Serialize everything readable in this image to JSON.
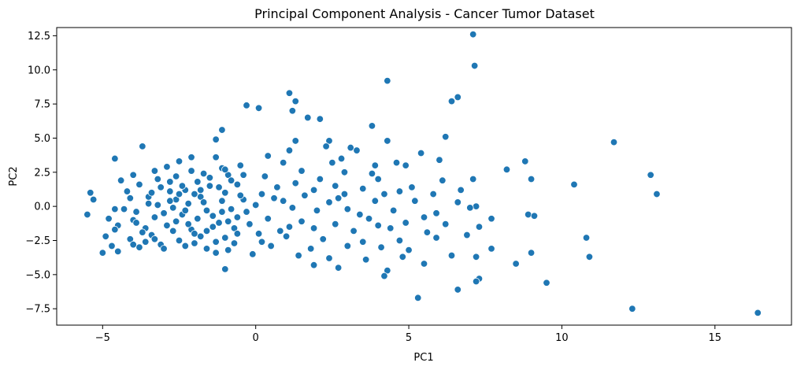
{
  "chart_data": {
    "type": "scatter",
    "title": "Principal Component Analysis - Cancer Tumor Dataset",
    "xlabel": "PC1",
    "ylabel": "PC2",
    "xlim": [
      -6.5,
      17.5
    ],
    "ylim": [
      -8.7,
      13.1
    ],
    "xticks": [
      -5,
      0,
      5,
      10,
      15
    ],
    "xtick_labels": [
      "−5",
      "0",
      "5",
      "10",
      "15"
    ],
    "yticks": [
      -7.5,
      -5.0,
      -2.5,
      0.0,
      2.5,
      5.0,
      7.5,
      10.0,
      12.5
    ],
    "ytick_labels": [
      "−7.5",
      "−5.0",
      "−2.5",
      "0.0",
      "2.5",
      "5.0",
      "7.5",
      "10.0",
      "12.5"
    ],
    "grid": false,
    "marker_color": "#1f77b4",
    "marker_edge": "#ffffff",
    "points": [
      [
        7.1,
        12.6
      ],
      [
        7.15,
        10.3
      ],
      [
        4.3,
        9.2
      ],
      [
        1.1,
        8.3
      ],
      [
        1.3,
        7.7
      ],
      [
        6.6,
        8.0
      ],
      [
        6.4,
        7.7
      ],
      [
        -0.3,
        7.4
      ],
      [
        0.1,
        7.2
      ],
      [
        1.2,
        7.0
      ],
      [
        1.7,
        6.5
      ],
      [
        2.1,
        6.4
      ],
      [
        3.8,
        5.9
      ],
      [
        -1.1,
        5.6
      ],
      [
        6.2,
        5.1
      ],
      [
        11.7,
        4.7
      ],
      [
        -1.3,
        4.9
      ],
      [
        1.3,
        4.8
      ],
      [
        2.4,
        4.8
      ],
      [
        4.3,
        4.8
      ],
      [
        -3.7,
        4.4
      ],
      [
        2.3,
        4.4
      ],
      [
        3.1,
        4.3
      ],
      [
        3.3,
        4.1
      ],
      [
        1.1,
        4.1
      ],
      [
        0.4,
        3.7
      ],
      [
        -1.3,
        3.6
      ],
      [
        -2.1,
        3.6
      ],
      [
        -4.6,
        3.5
      ],
      [
        2.8,
        3.5
      ],
      [
        5.4,
        3.9
      ],
      [
        8.8,
        3.3
      ],
      [
        6.0,
        3.4
      ],
      [
        -2.5,
        3.3
      ],
      [
        4.6,
        3.2
      ],
      [
        4.9,
        3.0
      ],
      [
        2.5,
        3.2
      ],
      [
        -1.1,
        2.8
      ],
      [
        3.9,
        3.0
      ],
      [
        0.9,
        3.2
      ],
      [
        -0.5,
        3.0
      ],
      [
        8.2,
        2.7
      ],
      [
        1.5,
        2.6
      ],
      [
        2.9,
        2.5
      ],
      [
        12.9,
        2.3
      ],
      [
        9.0,
        2.0
      ],
      [
        7.1,
        2.0
      ],
      [
        -4.0,
        2.3
      ],
      [
        -3.3,
        2.6
      ],
      [
        -1.7,
        2.4
      ],
      [
        -0.9,
        2.3
      ],
      [
        0.3,
        2.2
      ],
      [
        2.1,
        2.0
      ],
      [
        4.0,
        2.0
      ],
      [
        6.1,
        1.9
      ],
      [
        10.4,
        1.6
      ],
      [
        -3.8,
        1.6
      ],
      [
        -2.8,
        1.8
      ],
      [
        -1.5,
        1.5
      ],
      [
        -0.6,
        1.6
      ],
      [
        0.7,
        1.4
      ],
      [
        1.9,
        1.2
      ],
      [
        3.5,
        1.3
      ],
      [
        5.1,
        1.4
      ],
      [
        6.7,
        1.2
      ],
      [
        13.1,
        0.9
      ],
      [
        -5.4,
        1.0
      ],
      [
        -4.2,
        1.1
      ],
      [
        -2.3,
        1.2
      ],
      [
        -1.0,
        1.0
      ],
      [
        0.2,
        0.9
      ],
      [
        1.6,
        0.8
      ],
      [
        2.7,
        0.6
      ],
      [
        4.2,
        0.9
      ],
      [
        5.8,
        0.9
      ],
      [
        7.2,
        0.0
      ],
      [
        -5.3,
        0.5
      ],
      [
        -3.5,
        0.7
      ],
      [
        -2.6,
        0.5
      ],
      [
        -1.8,
        0.7
      ],
      [
        -0.4,
        0.5
      ],
      [
        0.9,
        0.4
      ],
      [
        2.4,
        0.3
      ],
      [
        3.9,
        0.4
      ],
      [
        5.2,
        0.4
      ],
      [
        7.0,
        -0.1
      ],
      [
        -5.5,
        -0.6
      ],
      [
        -4.6,
        -0.2
      ],
      [
        -3.9,
        -0.4
      ],
      [
        -3.2,
        0.1
      ],
      [
        -2.7,
        -0.1
      ],
      [
        -2.2,
        0.2
      ],
      [
        -1.6,
        -0.3
      ],
      [
        -0.8,
        -0.2
      ],
      [
        0.0,
        0.1
      ],
      [
        1.2,
        -0.1
      ],
      [
        2.0,
        -0.3
      ],
      [
        3.0,
        -0.2
      ],
      [
        4.5,
        -0.3
      ],
      [
        5.9,
        -0.5
      ],
      [
        7.7,
        -0.9
      ],
      [
        8.9,
        -0.6
      ],
      [
        9.1,
        -0.7
      ],
      [
        -4.8,
        -0.9
      ],
      [
        -4.0,
        -1.0
      ],
      [
        -3.3,
        -0.8
      ],
      [
        -2.6,
        -1.1
      ],
      [
        -1.9,
        -0.9
      ],
      [
        -1.2,
        -1.2
      ],
      [
        -0.6,
        -0.8
      ],
      [
        0.4,
        -0.9
      ],
      [
        1.5,
        -1.1
      ],
      [
        2.6,
        -1.3
      ],
      [
        3.7,
        -0.9
      ],
      [
        4.9,
        -1.2
      ],
      [
        6.2,
        -1.3
      ],
      [
        7.3,
        -1.5
      ],
      [
        -4.5,
        -1.4
      ],
      [
        -3.6,
        -1.6
      ],
      [
        -2.9,
        -1.4
      ],
      [
        -2.1,
        -1.7
      ],
      [
        -1.4,
        -1.5
      ],
      [
        -0.7,
        -1.6
      ],
      [
        0.8,
        -1.8
      ],
      [
        1.9,
        -1.6
      ],
      [
        3.2,
        -1.8
      ],
      [
        4.4,
        -1.6
      ],
      [
        5.6,
        -1.9
      ],
      [
        6.9,
        -2.1
      ],
      [
        10.8,
        -2.3
      ],
      [
        -4.9,
        -2.2
      ],
      [
        -4.1,
        -2.4
      ],
      [
        -3.4,
        -2.1
      ],
      [
        -2.5,
        -2.5
      ],
      [
        -1.8,
        -2.2
      ],
      [
        -1.0,
        -2.3
      ],
      [
        0.2,
        -2.6
      ],
      [
        1.0,
        -2.2
      ],
      [
        2.2,
        -2.4
      ],
      [
        3.5,
        -2.6
      ],
      [
        4.7,
        -2.5
      ],
      [
        5.9,
        -2.3
      ],
      [
        -4.7,
        -2.9
      ],
      [
        -3.8,
        -3.0
      ],
      [
        -3.1,
        -2.8
      ],
      [
        -2.3,
        -2.9
      ],
      [
        -1.6,
        -3.1
      ],
      [
        -0.9,
        -3.2
      ],
      [
        0.5,
        -2.9
      ],
      [
        1.8,
        -3.1
      ],
      [
        3.0,
        -2.9
      ],
      [
        4.1,
        -3.0
      ],
      [
        5.0,
        -3.2
      ],
      [
        7.7,
        -3.1
      ],
      [
        -5.0,
        -3.4
      ],
      [
        -4.5,
        -3.3
      ],
      [
        -1.3,
        -3.4
      ],
      [
        -0.1,
        -3.5
      ],
      [
        1.4,
        -3.6
      ],
      [
        2.4,
        -3.8
      ],
      [
        3.6,
        -3.9
      ],
      [
        4.8,
        -3.7
      ],
      [
        6.4,
        -3.6
      ],
      [
        7.2,
        -3.7
      ],
      [
        9.0,
        -3.4
      ],
      [
        10.9,
        -3.7
      ],
      [
        -1.0,
        -4.6
      ],
      [
        1.9,
        -4.3
      ],
      [
        2.7,
        -4.5
      ],
      [
        4.3,
        -4.7
      ],
      [
        5.5,
        -4.2
      ],
      [
        8.5,
        -4.2
      ],
      [
        4.2,
        -5.1
      ],
      [
        7.3,
        -5.3
      ],
      [
        7.2,
        -5.5
      ],
      [
        9.5,
        -5.6
      ],
      [
        6.6,
        -6.1
      ],
      [
        5.3,
        -6.7
      ],
      [
        12.3,
        -7.5
      ],
      [
        16.4,
        -7.8
      ],
      [
        -2.0,
        0.9
      ],
      [
        -2.4,
        -0.6
      ],
      [
        -1.7,
        0.3
      ],
      [
        -3.0,
        -0.5
      ],
      [
        -2.2,
        -1.3
      ],
      [
        -1.1,
        0.4
      ],
      [
        -3.5,
        0.2
      ],
      [
        -2.8,
        1.1
      ],
      [
        -1.4,
        -0.7
      ],
      [
        -0.3,
        -0.4
      ],
      [
        -2.6,
        2.2
      ],
      [
        -1.9,
        1.8
      ],
      [
        -3.1,
        1.4
      ],
      [
        -0.8,
        1.9
      ],
      [
        -4.3,
        -0.2
      ],
      [
        -3.7,
        -1.9
      ],
      [
        -2.0,
        -2.0
      ],
      [
        -1.5,
        2.1
      ],
      [
        -2.9,
        2.9
      ],
      [
        -1.2,
        1.4
      ],
      [
        -0.5,
        0.8
      ],
      [
        -4.1,
        0.6
      ],
      [
        -3.3,
        -2.4
      ],
      [
        -0.2,
        -1.3
      ],
      [
        0.6,
        0.6
      ],
      [
        1.3,
        1.7
      ],
      [
        2.6,
        1.5
      ],
      [
        3.4,
        -0.6
      ],
      [
        4.0,
        -1.4
      ],
      [
        0.1,
        -2.0
      ],
      [
        1.1,
        -1.5
      ],
      [
        2.9,
        0.9
      ],
      [
        3.8,
        2.4
      ],
      [
        4.7,
        1.1
      ],
      [
        5.5,
        -0.8
      ],
      [
        6.6,
        0.3
      ],
      [
        -2.4,
        1.5
      ],
      [
        -1.6,
        -1.8
      ],
      [
        -3.9,
        -1.2
      ],
      [
        -2.7,
        -1.8
      ],
      [
        -0.9,
        -1.1
      ],
      [
        -4.4,
        1.9
      ],
      [
        -3.2,
        2.0
      ],
      [
        -2.1,
        2.6
      ],
      [
        -1.0,
        2.7
      ],
      [
        -0.7,
        -2.7
      ],
      [
        -3.6,
        -2.6
      ],
      [
        -2.8,
        0.4
      ],
      [
        -1.3,
        -2.6
      ],
      [
        -4.6,
        -1.7
      ],
      [
        -3.0,
        -3.1
      ],
      [
        -2.3,
        -0.3
      ],
      [
        -1.8,
        1.2
      ],
      [
        -0.4,
        2.3
      ],
      [
        -4.0,
        -2.8
      ],
      [
        -2.5,
        0.9
      ],
      [
        -1.1,
        -0.4
      ],
      [
        -3.4,
        1.0
      ],
      [
        -2.0,
        -2.7
      ],
      [
        -0.6,
        -2.0
      ]
    ]
  }
}
